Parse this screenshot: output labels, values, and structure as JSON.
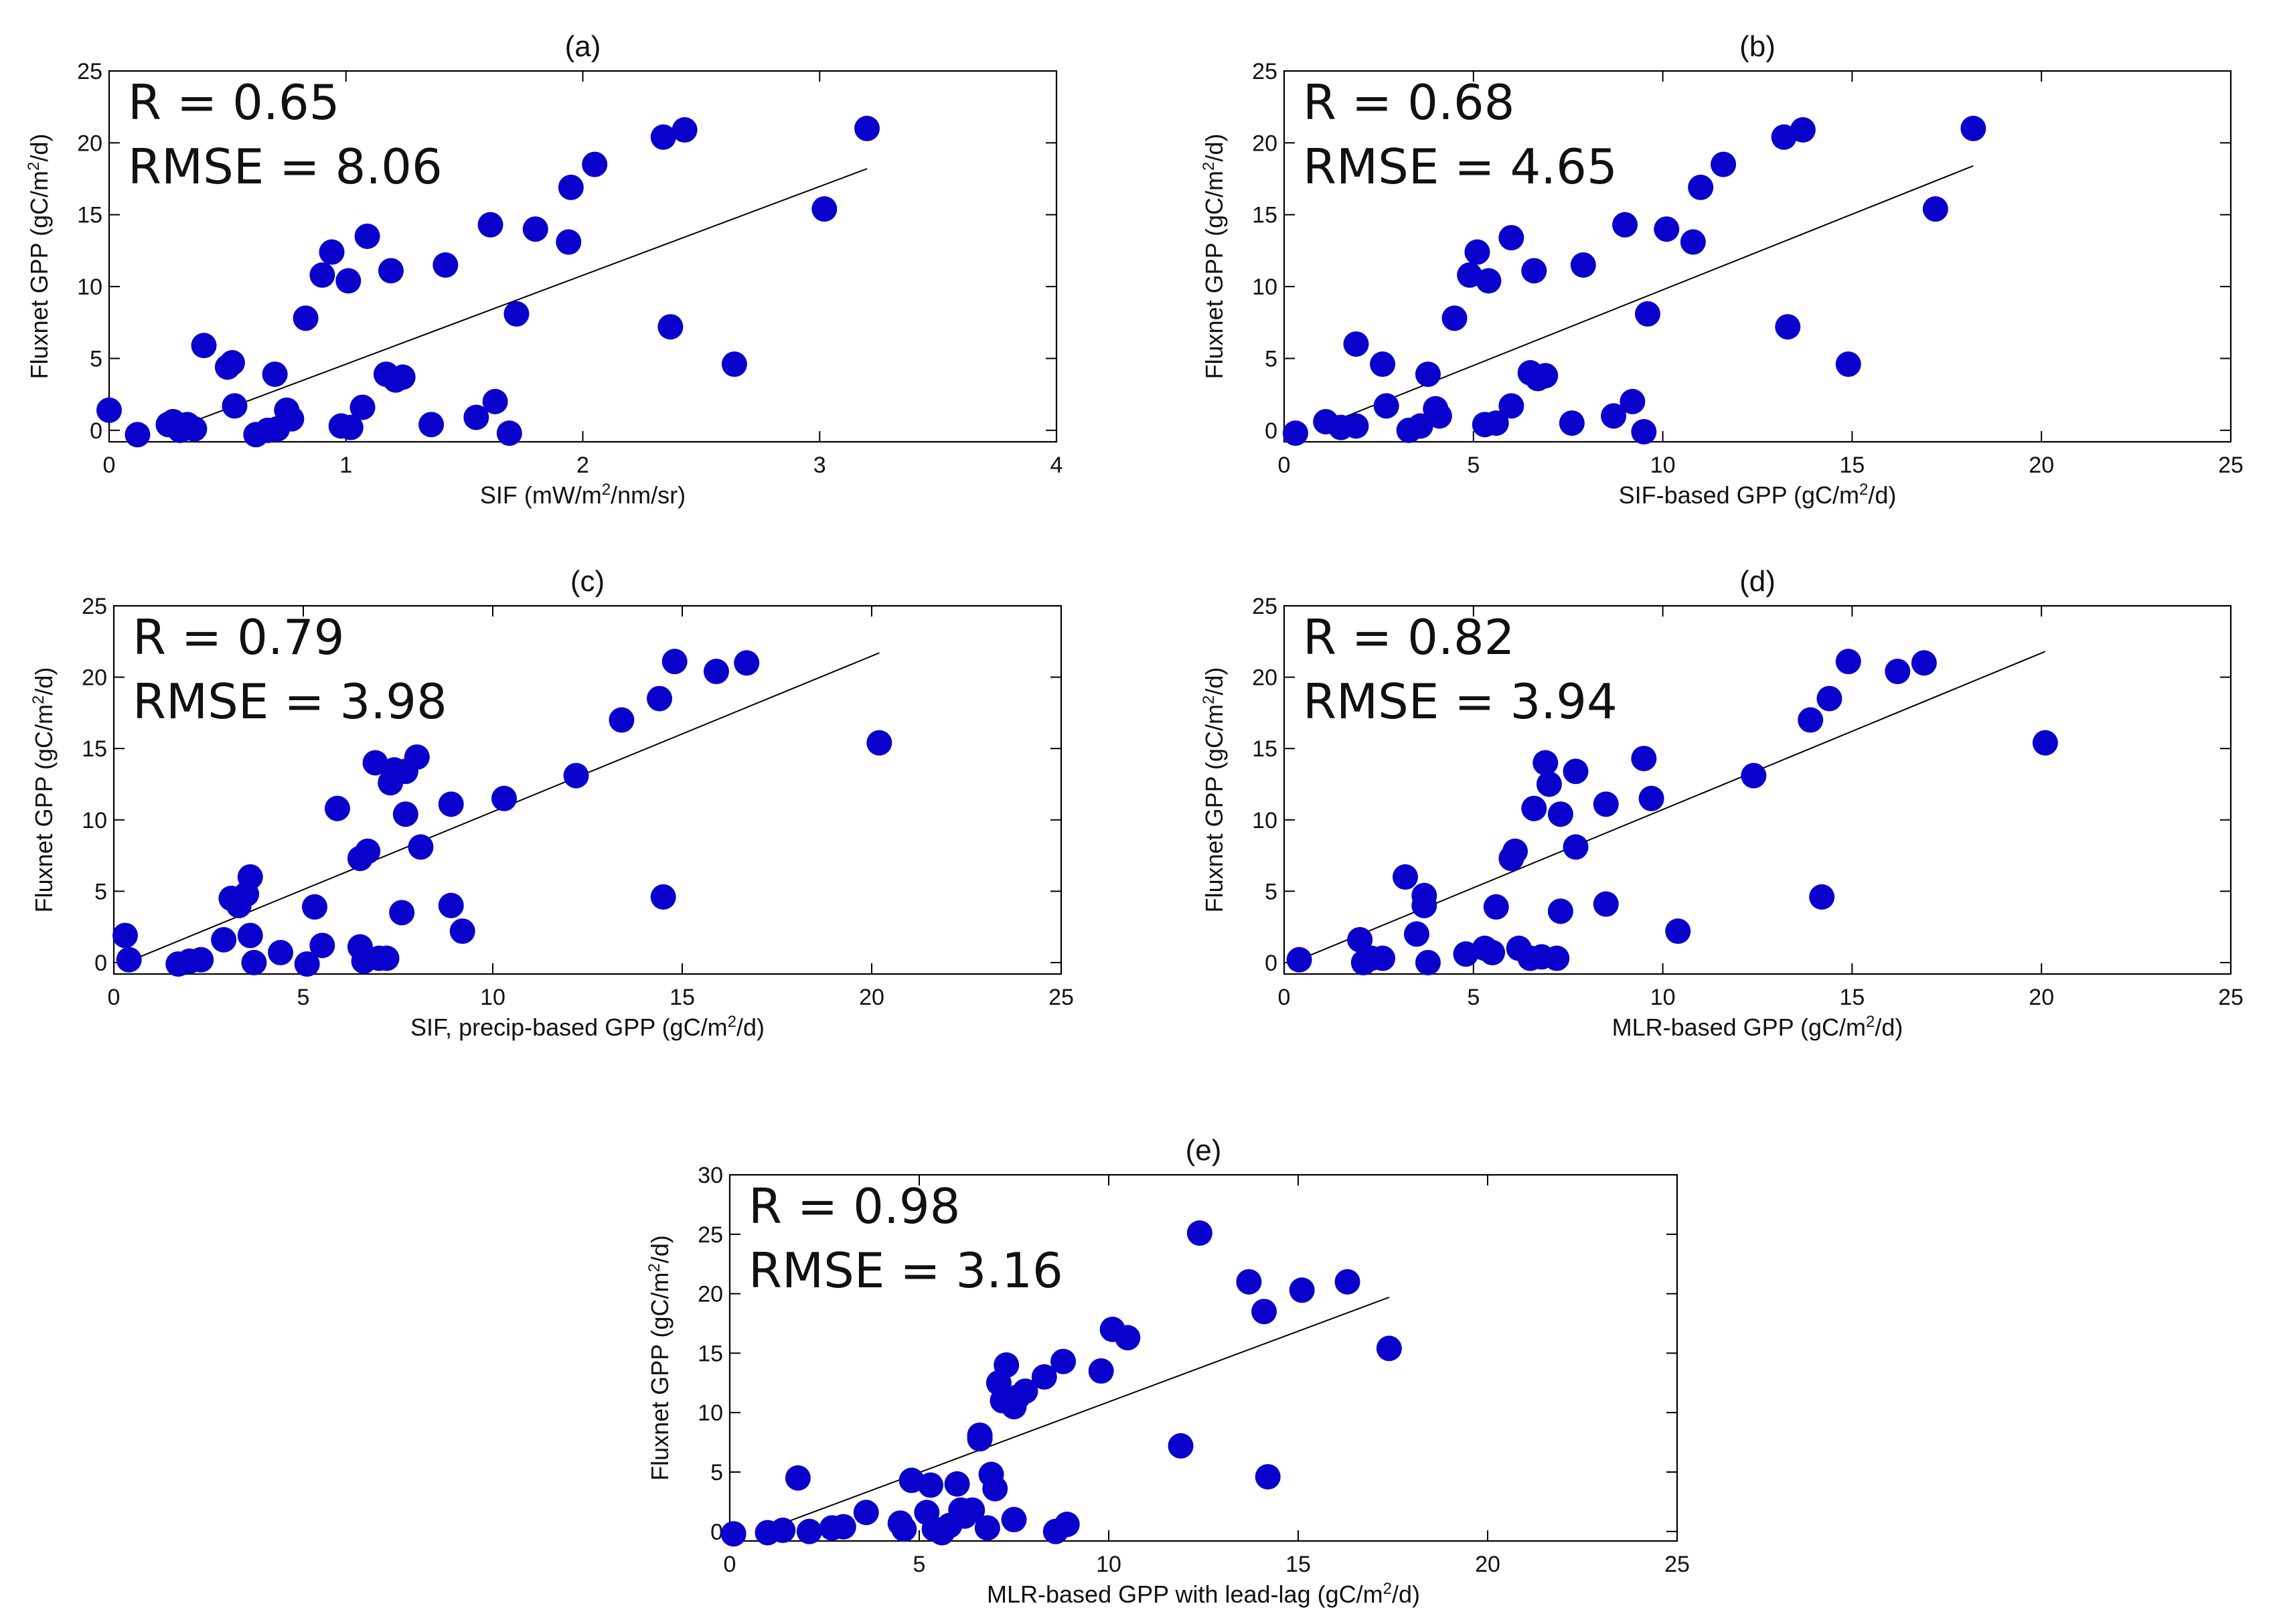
{
  "colors": {
    "point": "#0a00cc",
    "line": "#000000",
    "text": "#111111"
  },
  "chart_data": [
    {
      "type": "scatter",
      "panel": "(a)",
      "title": "(a)",
      "xlabel": "SIF (mW/m2/nm/sr)",
      "ylabel": "Fluxnet GPP (gC/m2/d)",
      "xlabel_parts": [
        "SIF (mW/m",
        "2",
        "/nm/sr)"
      ],
      "ylabel_parts": [
        "Fluxnet GPP (gC/m",
        "2",
        "/d)"
      ],
      "xlim": [
        0,
        4
      ],
      "ylim": [
        -0.8,
        25
      ],
      "xticks": [
        0,
        1,
        2,
        3,
        4
      ],
      "xtick_labels": [
        "0",
        "1",
        "2",
        "3",
        "4"
      ],
      "yticks": [
        0,
        5,
        10,
        15,
        20,
        25
      ],
      "ytick_labels": [
        "0",
        "5",
        "10",
        "15",
        "20",
        "25"
      ],
      "stats": [
        "R = 0.65",
        "RMSE = 8.06"
      ],
      "fit": {
        "x": [
          0.32,
          3.2
        ],
        "y": [
          0.4,
          18.2
        ]
      },
      "x": [
        0.0,
        0.12,
        0.25,
        0.27,
        0.3,
        0.33,
        0.36,
        0.4,
        0.5,
        0.52,
        0.53,
        0.62,
        0.67,
        0.7,
        0.71,
        0.75,
        0.77,
        0.83,
        0.9,
        0.94,
        0.98,
        1.01,
        1.02,
        1.07,
        1.09,
        1.17,
        1.19,
        1.21,
        1.24,
        1.36,
        1.42,
        1.55,
        1.61,
        1.63,
        1.69,
        1.72,
        1.8,
        1.94,
        1.95,
        2.05,
        2.34,
        2.37,
        2.43,
        2.64,
        3.02,
        3.2
      ],
      "y": [
        1.4,
        -0.3,
        0.4,
        0.6,
        0.0,
        0.4,
        0.1,
        5.9,
        4.4,
        4.7,
        1.7,
        -0.3,
        0.0,
        3.9,
        0.1,
        1.4,
        0.8,
        7.8,
        10.8,
        12.4,
        0.3,
        10.4,
        0.2,
        1.6,
        13.5,
        3.9,
        11.1,
        3.5,
        3.7,
        0.4,
        11.5,
        0.9,
        14.3,
        2.0,
        -0.2,
        8.1,
        14.0,
        13.1,
        16.9,
        18.5,
        20.4,
        7.2,
        20.9,
        4.6,
        15.4,
        21.0
      ]
    },
    {
      "type": "scatter",
      "panel": "(b)",
      "title": "(b)",
      "xlabel": "SIF-based GPP (gC/m2/d)",
      "ylabel": "Fluxnet GPP (gC/m2/d)",
      "xlabel_parts": [
        "SIF-based GPP (gC/m",
        "2",
        "/d)"
      ],
      "ylabel_parts": [
        "Fluxnet GPP (gC/m",
        "2",
        "/d)"
      ],
      "xlim": [
        0,
        25
      ],
      "ylim": [
        -0.8,
        25
      ],
      "xticks": [
        0,
        5,
        10,
        15,
        20,
        25
      ],
      "xtick_labels": [
        "0",
        "5",
        "10",
        "15",
        "20",
        "25"
      ],
      "yticks": [
        0,
        5,
        10,
        15,
        20,
        25
      ],
      "ytick_labels": [
        "0",
        "5",
        "10",
        "15",
        "20",
        "25"
      ],
      "stats": [
        "R = 0.68",
        "RMSE = 4.65"
      ],
      "fit": {
        "x": [
          1.0,
          18.2
        ],
        "y": [
          0.3,
          18.4
        ]
      },
      "x": [
        0.3,
        1.1,
        1.5,
        1.9,
        1.9,
        2.6,
        2.7,
        3.3,
        3.6,
        3.8,
        4.0,
        4.1,
        4.5,
        4.9,
        5.1,
        5.3,
        5.4,
        5.6,
        6.0,
        6.0,
        6.5,
        6.6,
        6.7,
        6.9,
        7.6,
        7.9,
        8.7,
        9.0,
        9.2,
        9.5,
        9.6,
        10.1,
        10.8,
        11.0,
        11.6,
        13.2,
        13.3,
        13.7,
        14.9,
        17.2,
        18.2
      ],
      "y": [
        -0.2,
        0.6,
        0.2,
        0.3,
        6.0,
        4.6,
        1.7,
        0.0,
        0.3,
        3.9,
        1.5,
        1.0,
        7.8,
        10.8,
        12.4,
        0.4,
        10.4,
        0.5,
        13.4,
        1.7,
        4.0,
        11.1,
        3.6,
        3.8,
        0.5,
        11.5,
        1.0,
        14.3,
        2.0,
        -0.1,
        8.1,
        14.0,
        13.1,
        16.9,
        18.5,
        20.4,
        7.2,
        20.9,
        4.6,
        15.4,
        21.0
      ]
    },
    {
      "type": "scatter",
      "panel": "(c)",
      "title": "(c)",
      "xlabel": "SIF, precip-based GPP (gC/m2/d)",
      "ylabel": "Fluxnet GPP (gC/m2/d)",
      "xlabel_parts": [
        "SIF, precip-based GPP (gC/m",
        "2",
        "/d)"
      ],
      "ylabel_parts": [
        "Fluxnet GPP (gC/m",
        "2",
        "/d)"
      ],
      "xlim": [
        0,
        25
      ],
      "ylim": [
        -0.8,
        25
      ],
      "xticks": [
        0,
        5,
        10,
        15,
        20,
        25
      ],
      "xtick_labels": [
        "0",
        "5",
        "10",
        "15",
        "20",
        "25"
      ],
      "yticks": [
        0,
        5,
        10,
        15,
        20,
        25
      ],
      "ytick_labels": [
        "0",
        "5",
        "10",
        "15",
        "20",
        "25"
      ],
      "stats": [
        "R = 0.79",
        "RMSE = 3.98"
      ],
      "fit": {
        "x": [
          0.5,
          20.2
        ],
        "y": [
          0.2,
          21.7
        ]
      },
      "x": [
        0.3,
        0.4,
        1.7,
        2.0,
        2.3,
        2.9,
        3.1,
        3.3,
        3.5,
        3.6,
        3.6,
        3.7,
        4.4,
        5.1,
        5.3,
        5.5,
        5.9,
        6.5,
        6.5,
        6.6,
        6.7,
        6.9,
        7.0,
        7.2,
        7.3,
        7.4,
        7.6,
        7.7,
        7.7,
        8.0,
        8.1,
        8.9,
        8.9,
        9.2,
        10.3,
        12.2,
        13.4,
        14.4,
        14.5,
        14.8,
        15.9,
        16.7,
        20.2
      ],
      "y": [
        1.9,
        0.2,
        -0.1,
        0.1,
        0.2,
        1.6,
        4.5,
        4.0,
        4.8,
        6.0,
        1.9,
        0.0,
        0.7,
        -0.1,
        3.9,
        1.2,
        10.8,
        7.3,
        1.1,
        0.1,
        7.8,
        14.0,
        0.3,
        0.3,
        12.6,
        13.5,
        3.5,
        10.4,
        13.4,
        14.4,
        8.1,
        4.0,
        11.1,
        2.2,
        11.5,
        13.1,
        17.0,
        18.5,
        4.6,
        21.1,
        20.4,
        21.0,
        15.4
      ]
    },
    {
      "type": "scatter",
      "panel": "(d)",
      "title": "(d)",
      "xlabel": "MLR-based GPP (gC/m2/d)",
      "ylabel": "Fluxnet GPP (gC/m2/d)",
      "xlabel_parts": [
        "MLR-based GPP (gC/m",
        "2",
        "/d)"
      ],
      "ylabel_parts": [
        "Fluxnet GPP (gC/m",
        "2",
        "/d)"
      ],
      "xlim": [
        0,
        25
      ],
      "ylim": [
        -0.8,
        25
      ],
      "xticks": [
        0,
        5,
        10,
        15,
        20,
        25
      ],
      "xtick_labels": [
        "0",
        "5",
        "10",
        "15",
        "20",
        "25"
      ],
      "yticks": [
        0,
        5,
        10,
        15,
        20,
        25
      ],
      "ytick_labels": [
        "0",
        "5",
        "10",
        "15",
        "20",
        "25"
      ],
      "stats": [
        "R = 0.82",
        "RMSE = 3.94"
      ],
      "fit": {
        "x": [
          0.4,
          20.1
        ],
        "y": [
          0.2,
          21.8
        ]
      },
      "x": [
        0.4,
        2.0,
        2.1,
        2.3,
        2.6,
        3.2,
        3.5,
        3.7,
        3.7,
        3.8,
        4.8,
        5.3,
        5.5,
        5.6,
        6.0,
        6.1,
        6.2,
        6.5,
        6.6,
        6.8,
        6.9,
        7.0,
        7.2,
        7.3,
        7.3,
        7.7,
        7.7,
        8.5,
        8.5,
        9.5,
        9.7,
        10.4,
        12.4,
        13.9,
        14.2,
        14.4,
        14.9,
        16.2,
        16.9,
        20.1
      ],
      "y": [
        0.2,
        1.6,
        0.0,
        0.3,
        0.3,
        6.0,
        2.0,
        4.7,
        4.0,
        0.0,
        0.6,
        1.0,
        0.7,
        3.9,
        7.3,
        7.8,
        1.0,
        0.3,
        10.8,
        0.4,
        14.0,
        12.5,
        0.3,
        10.4,
        3.6,
        13.4,
        8.1,
        11.1,
        4.1,
        14.3,
        11.5,
        2.2,
        13.1,
        17.0,
        4.6,
        18.5,
        21.1,
        20.4,
        21.0,
        15.4
      ]
    },
    {
      "type": "scatter",
      "panel": "(e)",
      "title": "(e)",
      "xlabel": "MLR-based GPP with lead-lag (gC/m2/d)",
      "ylabel": "Fluxnet GPP (gC/m2/d)",
      "xlabel_parts": [
        "MLR-based GPP with lead-lag (gC/m",
        "2",
        "/d)"
      ],
      "ylabel_parts": [
        "Fluxnet GPP (gC/m",
        "2",
        "/d)"
      ],
      "xlim": [
        0,
        25
      ],
      "ylim": [
        -0.8,
        30
      ],
      "xticks": [
        0,
        5,
        10,
        15,
        20,
        25
      ],
      "xtick_labels": [
        "0",
        "5",
        "10",
        "15",
        "20",
        "25"
      ],
      "yticks": [
        0,
        5,
        10,
        15,
        20,
        25,
        30
      ],
      "ytick_labels": [
        "0",
        "5",
        "10",
        "15",
        "20",
        "25",
        "30"
      ],
      "stats": [
        "R = 0.98",
        "RMSE = 3.16"
      ],
      "fit": {
        "x": [
          1.0,
          17.4
        ],
        "y": [
          0.2,
          19.7
        ]
      },
      "x": [
        0.1,
        1.0,
        1.4,
        1.8,
        2.1,
        2.7,
        3.0,
        3.6,
        4.5,
        4.6,
        4.8,
        5.2,
        5.3,
        5.4,
        5.6,
        5.8,
        6.0,
        6.1,
        6.2,
        6.4,
        6.6,
        6.6,
        6.8,
        6.9,
        7.0,
        7.1,
        7.2,
        7.3,
        7.5,
        7.5,
        7.6,
        7.8,
        8.3,
        8.6,
        8.8,
        8.9,
        9.8,
        10.1,
        10.5,
        11.9,
        12.4,
        13.7,
        14.1,
        14.2,
        15.1,
        16.3,
        17.4
      ],
      "y": [
        -0.2,
        -0.1,
        0.1,
        4.5,
        0.0,
        0.3,
        0.4,
        1.6,
        0.7,
        0.2,
        4.3,
        1.6,
        3.9,
        0.2,
        -0.1,
        0.5,
        4.0,
        1.8,
        1.3,
        1.8,
        7.8,
        8.1,
        0.3,
        4.8,
        3.6,
        12.5,
        11.0,
        14.0,
        10.5,
        1.0,
        11.3,
        11.8,
        13.0,
        0.0,
        14.3,
        0.6,
        13.5,
        17.0,
        16.3,
        7.2,
        25.1,
        21.0,
        18.5,
        4.6,
        20.3,
        21.0,
        15.4
      ]
    }
  ]
}
